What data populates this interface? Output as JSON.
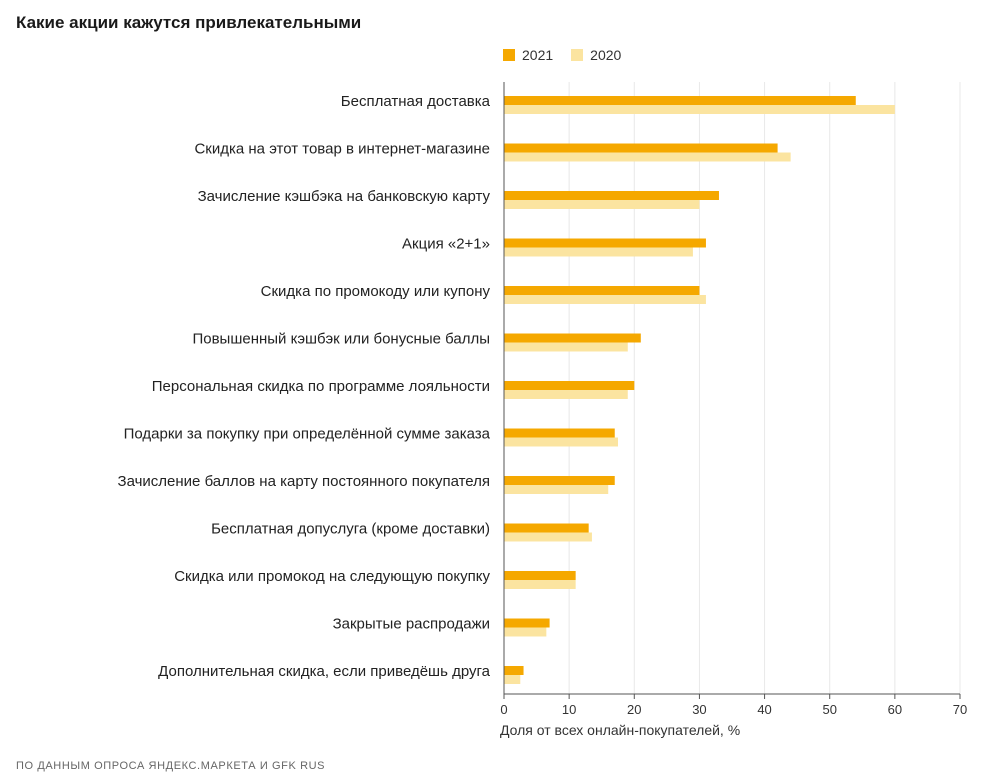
{
  "header": {
    "title": "Какие акции кажутся привлекательными"
  },
  "colors": {
    "series_2021": "#f5a800",
    "series_2020": "#fbe4a0",
    "grid": "#e8e8e8",
    "axis": "#555555"
  },
  "footer": {
    "source": "ПО ДАННЫМ ОПРОСА ЯНДЕКС.МАРКЕТА И GFK RUS"
  },
  "chart_data": {
    "type": "bar",
    "orientation": "horizontal",
    "title": "Какие акции кажутся привлекательными",
    "xlabel": "Доля от всех онлайн-покупателей, %",
    "ylabel": "",
    "xlim": [
      0,
      70
    ],
    "xticks": [
      0,
      10,
      20,
      30,
      40,
      50,
      60,
      70
    ],
    "grid": true,
    "legend_position": "top",
    "categories": [
      "Бесплатная доставка",
      "Скидка на этот товар в интернет-магазине",
      "Зачисление кэшбэка на банковскую карту",
      "Акция «2+1»",
      "Скидка по промокоду или купону",
      "Повышенный кэшбэк или бонусные баллы",
      "Персональная скидка по программе лояльности",
      "Подарки за покупку при определённой сумме заказа",
      "Зачисление баллов на карту постоянного покупателя",
      "Бесплатная допуслуга (кроме доставки)",
      "Скидка или промокод на следующую покупку",
      "Закрытые распродажи",
      "Дополнительная скидка, если приведёшь друга"
    ],
    "series": [
      {
        "name": "2021",
        "values": [
          54,
          42,
          33,
          31,
          30,
          21,
          20,
          17,
          17,
          13,
          11,
          7,
          3
        ]
      },
      {
        "name": "2020",
        "values": [
          60,
          44,
          30,
          29,
          31,
          19,
          19,
          17.5,
          16,
          13.5,
          11,
          6.5,
          2.5
        ]
      }
    ]
  }
}
